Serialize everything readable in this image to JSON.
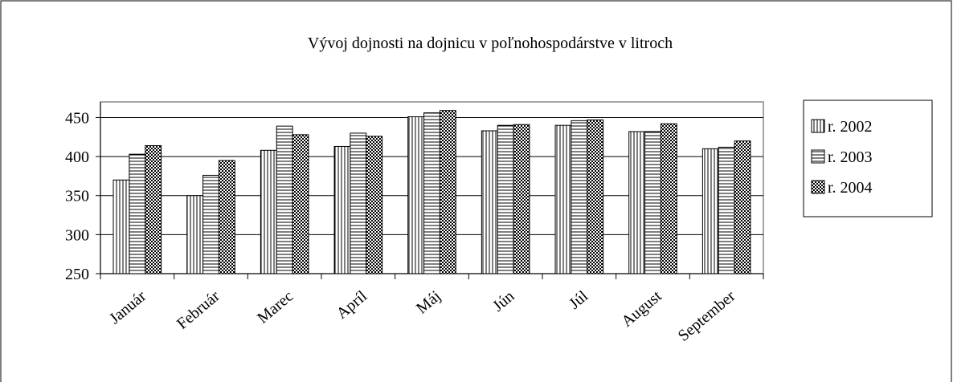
{
  "chart_data": {
    "type": "bar",
    "title": "Vývoj dojnosti na dojnicu v poľnohospodárstve v litroch",
    "categories": [
      "Január",
      "Február",
      "Marec",
      "Apríl",
      "Máj",
      "Jún",
      "Júl",
      "August",
      "September"
    ],
    "series": [
      {
        "name": "r. 2002",
        "color": "#ffffff",
        "values": [
          370,
          350,
          408,
          413,
          451,
          433,
          440,
          432,
          410
        ]
      },
      {
        "name": "r. 2003",
        "color": "#ffffff",
        "values": [
          403,
          376,
          439,
          430,
          456,
          440,
          446,
          432,
          412
        ]
      },
      {
        "name": "r. 2004",
        "color": "#ffffff",
        "values": [
          414,
          395,
          428,
          426,
          459,
          441,
          447,
          442,
          420
        ]
      }
    ],
    "ylim": [
      250,
      470
    ],
    "yticks": [
      250,
      300,
      350,
      400,
      450
    ],
    "grid": true,
    "legend": "right"
  }
}
